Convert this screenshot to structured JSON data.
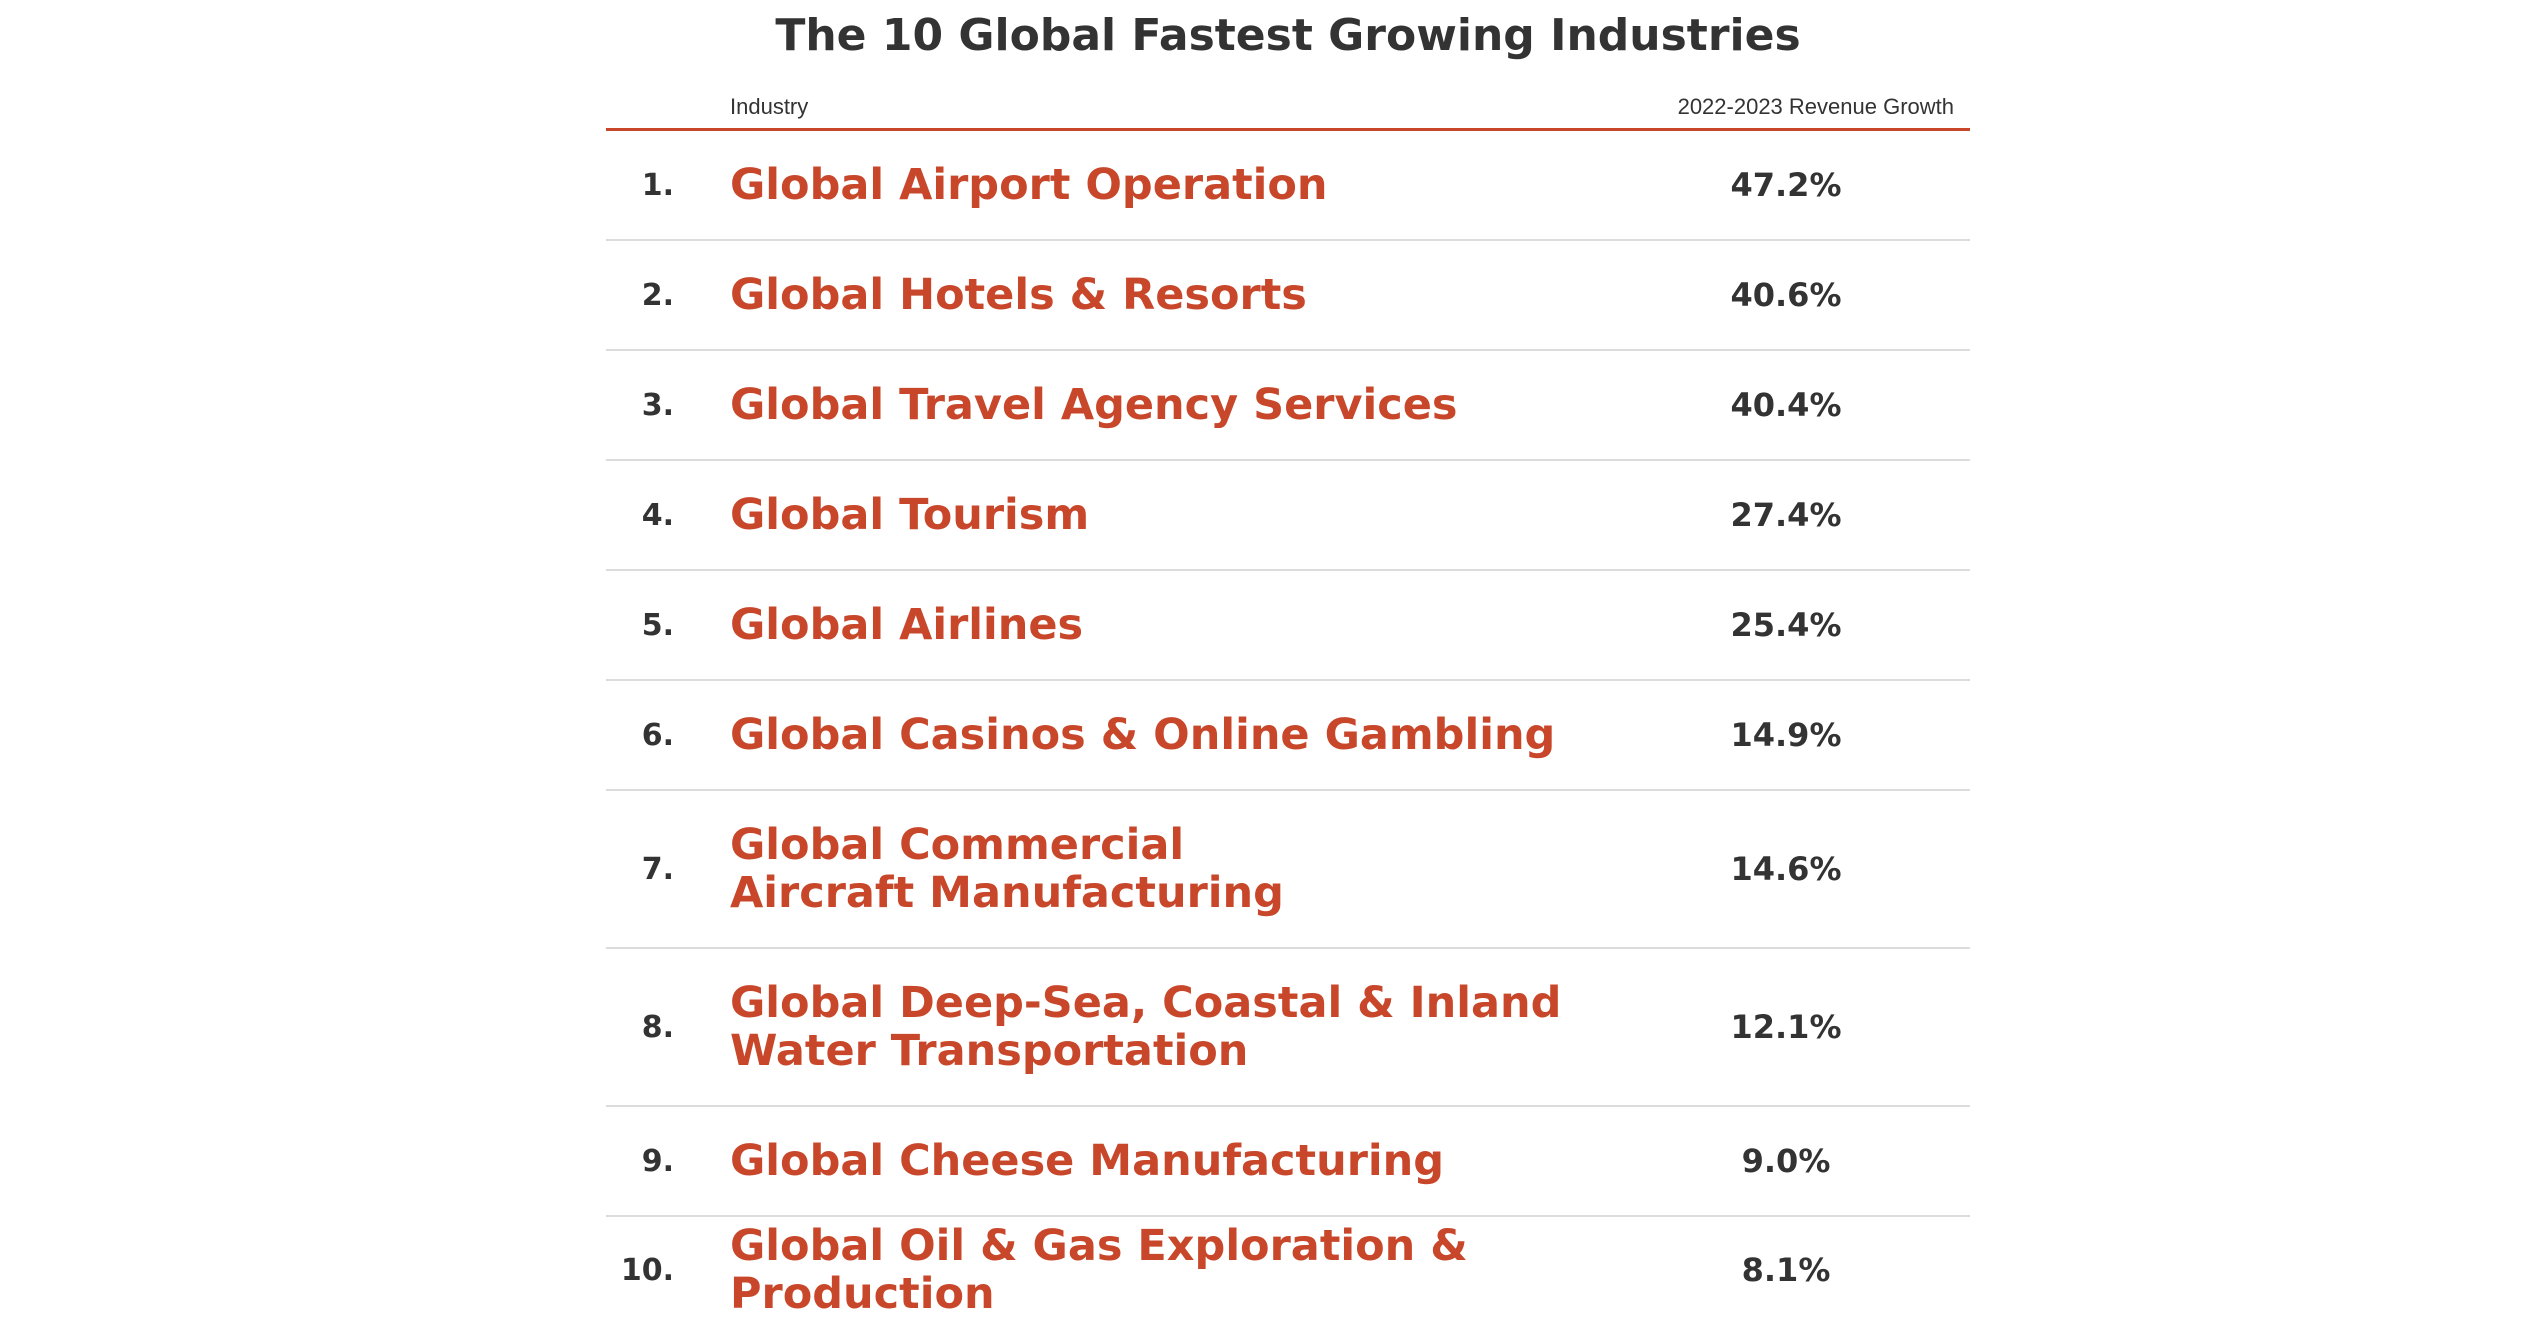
{
  "chart_data": {
    "type": "table",
    "title": "The 10 Global Fastest Growing Industries",
    "columns": [
      "Industry",
      "2022-2023 Revenue Growth"
    ],
    "accent_color": "#c8472a",
    "rows": [
      {
        "rank": "1.",
        "industry": "Global Airport Operation",
        "growth": "47.2%",
        "value": 47.2
      },
      {
        "rank": "2.",
        "industry": "Global Hotels & Resorts",
        "growth": "40.6%",
        "value": 40.6
      },
      {
        "rank": "3.",
        "industry": "Global Travel Agency Services",
        "growth": "40.4%",
        "value": 40.4
      },
      {
        "rank": "4.",
        "industry": "Global Tourism",
        "growth": "27.4%",
        "value": 27.4
      },
      {
        "rank": "5.",
        "industry": "Global Airlines",
        "growth": "25.4%",
        "value": 25.4
      },
      {
        "rank": "6.",
        "industry": "Global Casinos & Online Gambling",
        "growth": "14.9%",
        "value": 14.9
      },
      {
        "rank": "7.",
        "industry": "Global Commercial Aircraft Manufacturing",
        "growth": "14.6%",
        "value": 14.6
      },
      {
        "rank": "8.",
        "industry": "Global Deep-Sea, Coastal & Inland Water Transportation",
        "growth": "12.1%",
        "value": 12.1
      },
      {
        "rank": "9.",
        "industry": "Global Cheese Manufacturing",
        "growth": "9.0%",
        "value": 9.0
      },
      {
        "rank": "10.",
        "industry": "Global Oil & Gas Exploration & Production",
        "growth": "8.1%",
        "value": 8.1
      }
    ]
  }
}
